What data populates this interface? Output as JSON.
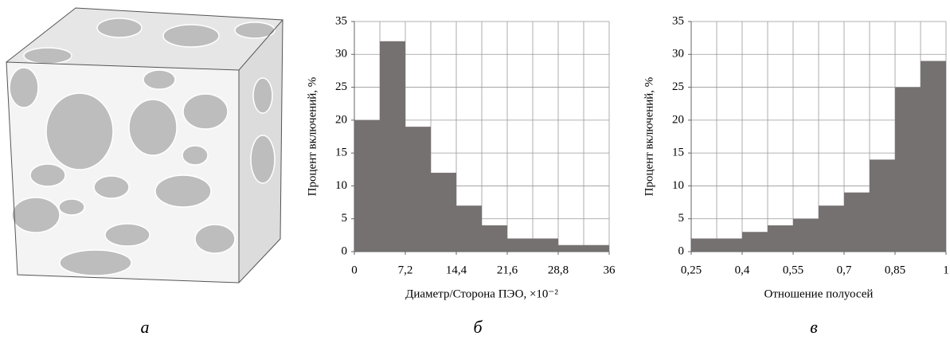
{
  "panel_labels": [
    "а",
    "б",
    "в"
  ],
  "chart_data": [
    {
      "type": "histogram",
      "color": "#767171",
      "ylabel": "Процент включений, %",
      "xlabel": "Диаметр/Сторона ПЭО, ×10⁻²",
      "bins": [
        0,
        3.6,
        7.2,
        10.8,
        14.4,
        18,
        21.6,
        25.2,
        28.8,
        32.4,
        36
      ],
      "values": [
        20,
        32,
        19,
        12,
        7,
        4,
        2,
        2,
        1,
        1
      ],
      "xlim": [
        0,
        36
      ],
      "xticks": [
        0,
        {
          "value": 7.2,
          "label": "7,2"
        },
        {
          "value": 14.4,
          "label": "14,4"
        },
        {
          "value": 21.6,
          "label": "21,6"
        },
        {
          "value": 28.8,
          "label": "28,8"
        },
        36
      ],
      "ylim": [
        0,
        35
      ],
      "yticks": [
        0,
        5,
        10,
        15,
        20,
        25,
        30,
        35
      ],
      "grid": true
    },
    {
      "type": "histogram",
      "color": "#767171",
      "ylabel": "Процент включений, %",
      "xlabel": "Отношение полуосей",
      "bins": [
        0.25,
        0.325,
        0.4,
        0.475,
        0.55,
        0.625,
        0.7,
        0.775,
        0.85,
        0.925,
        1
      ],
      "values": [
        2,
        2,
        3,
        4,
        5,
        7,
        9,
        14,
        25,
        29
      ],
      "xlim": [
        0.25,
        1
      ],
      "xticks": [
        {
          "value": 0.25,
          "label": "0,25"
        },
        {
          "value": 0.4,
          "label": "0,4"
        },
        {
          "value": 0.55,
          "label": "0,55"
        },
        {
          "value": 0.7,
          "label": "0,7"
        },
        {
          "value": 0.85,
          "label": "0,85"
        },
        1
      ],
      "ylim": [
        0,
        35
      ],
      "yticks": [
        0,
        5,
        10,
        15,
        20,
        25,
        30,
        35
      ],
      "grid": true
    }
  ]
}
